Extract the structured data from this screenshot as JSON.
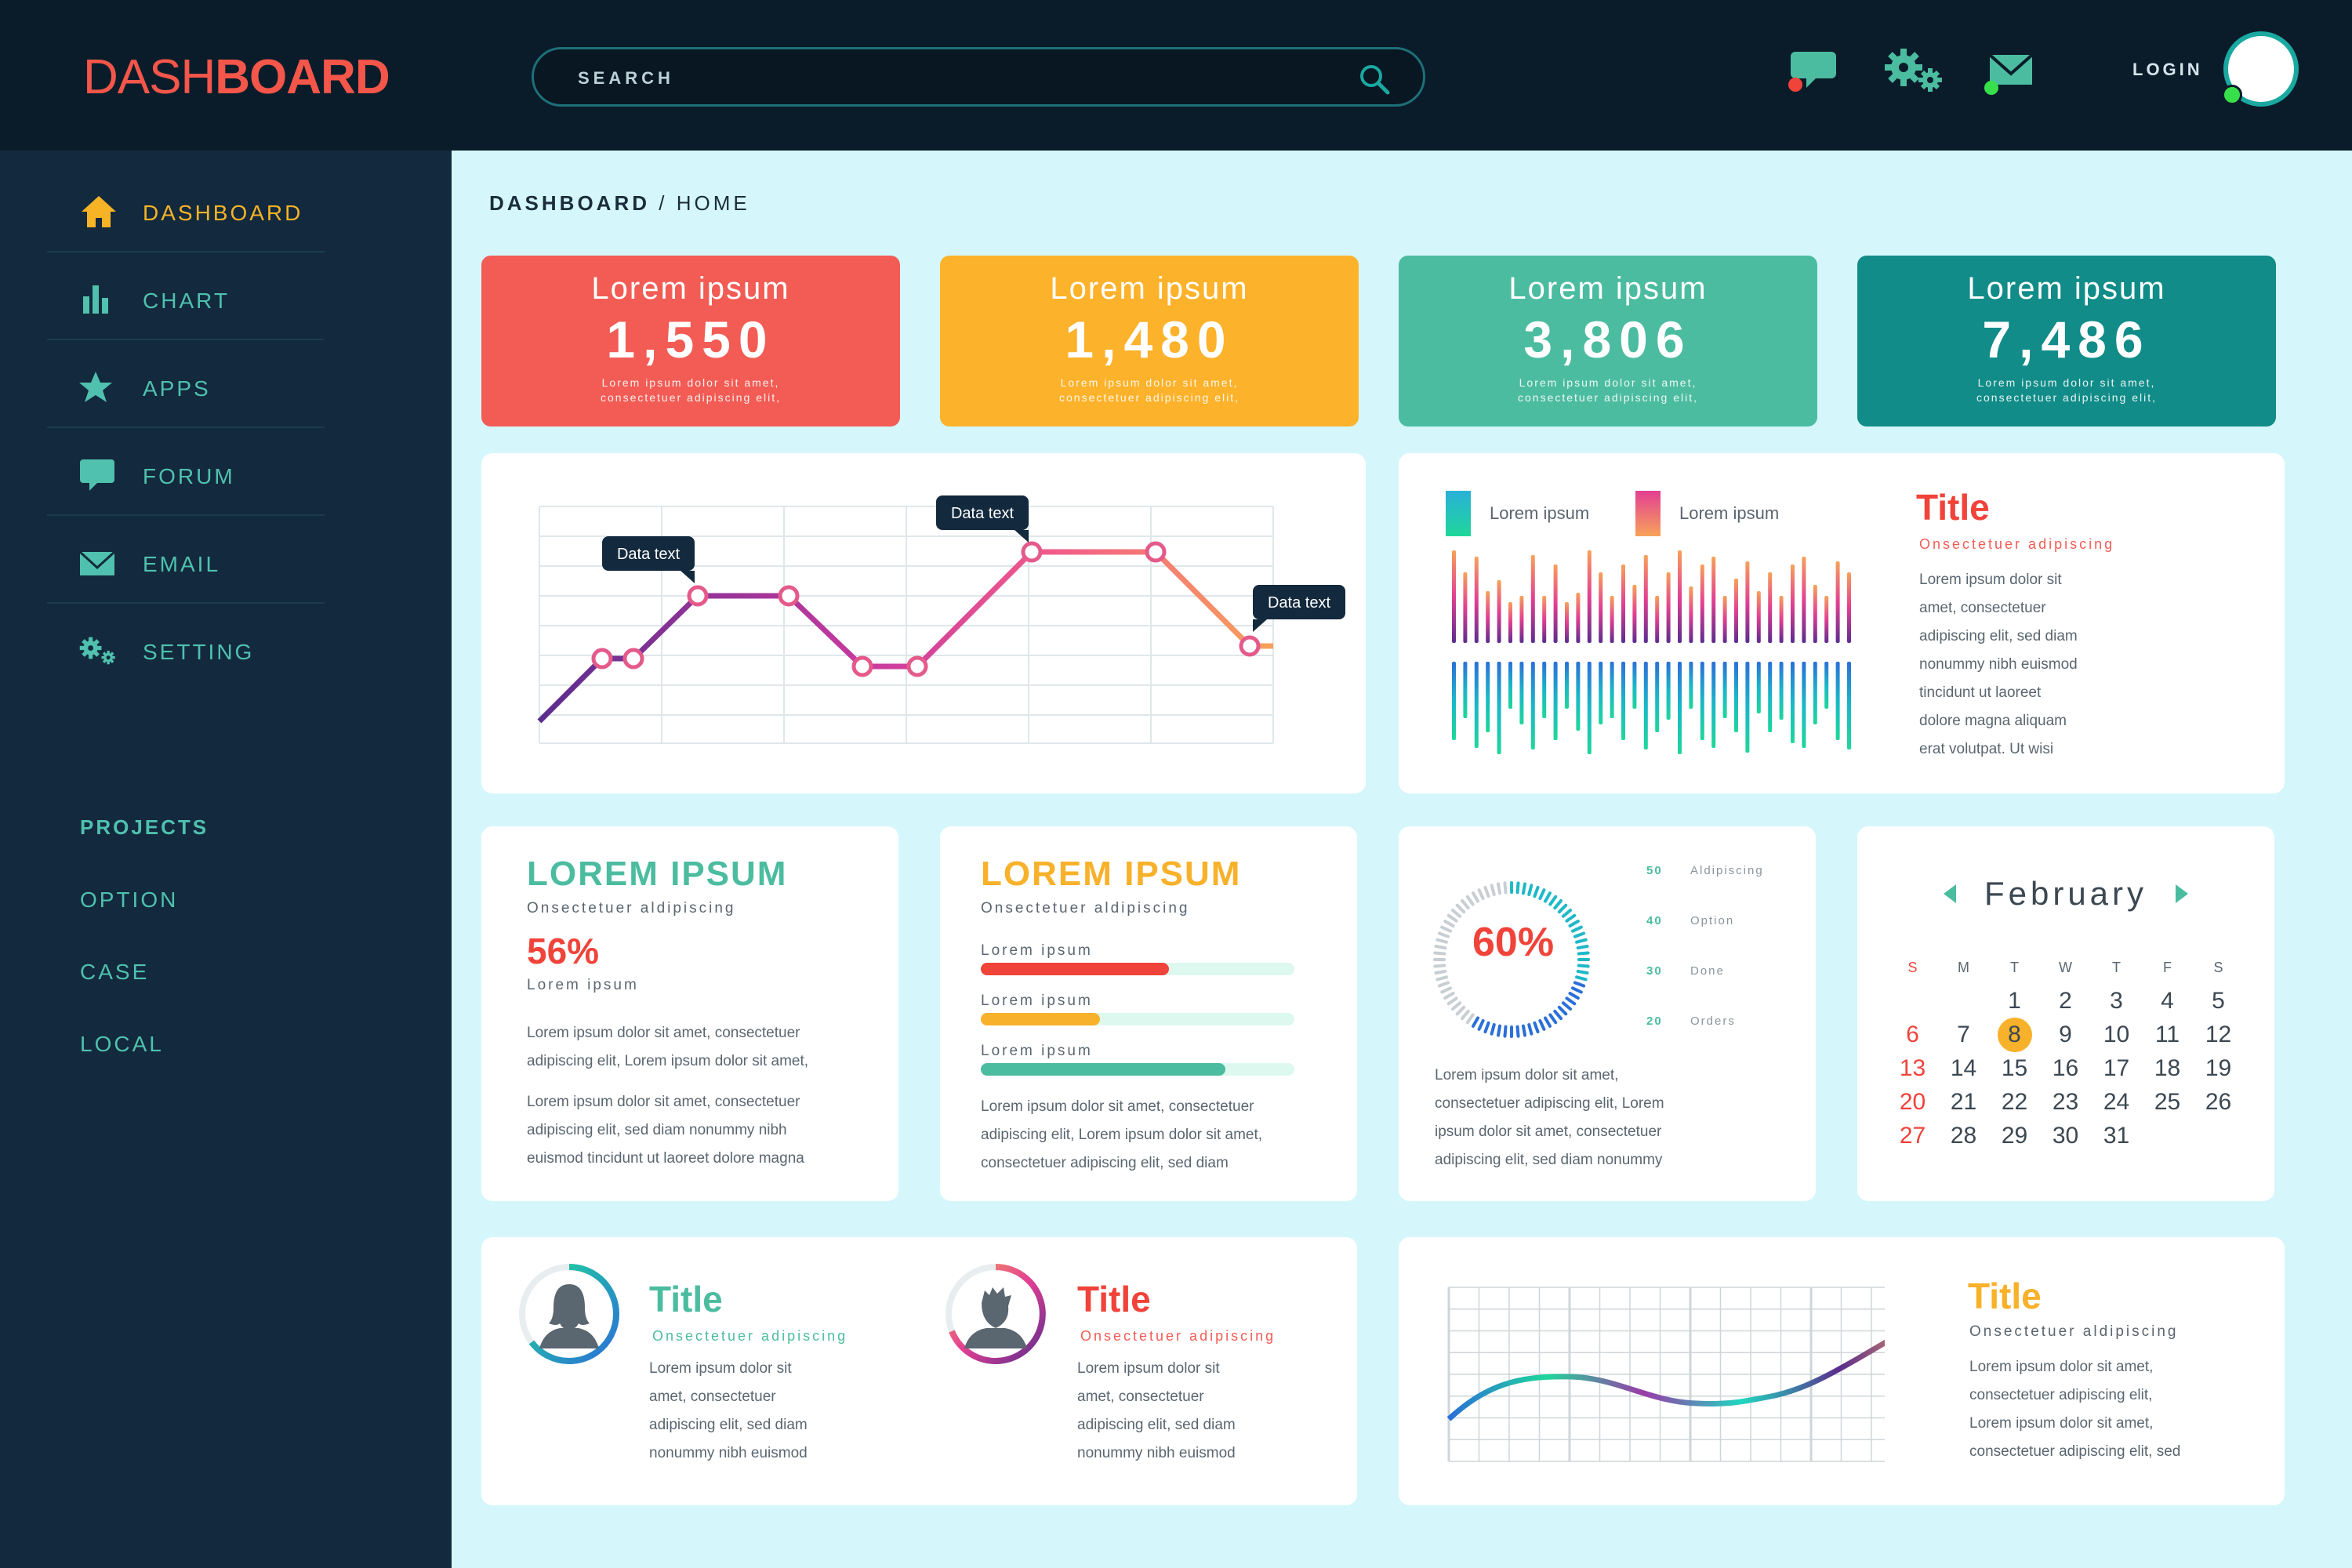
{
  "logo": {
    "thin": "DASH",
    "bold": "BOARD"
  },
  "search": {
    "placeholder": "SEARCH"
  },
  "header": {
    "login": "LOGIN"
  },
  "sidebar": {
    "items": [
      {
        "label": "DASHBOARD",
        "icon": "home-icon",
        "active": true
      },
      {
        "label": "CHART",
        "icon": "bar-chart-icon"
      },
      {
        "label": "APPS",
        "icon": "star-icon"
      },
      {
        "label": "FORUM",
        "icon": "chat-icon"
      },
      {
        "label": "EMAIL",
        "icon": "mail-icon"
      },
      {
        "label": "SETTING",
        "icon": "gears-icon"
      }
    ],
    "projects_heading": "PROJECTS",
    "projects": [
      "OPTION",
      "CASE",
      "LOCAL"
    ]
  },
  "breadcrumb": {
    "root": "DASHBOARD",
    "sep": "/",
    "current": "HOME"
  },
  "stats": [
    {
      "title": "Lorem ipsum",
      "value": "1,550",
      "sub1": "Lorem ipsum dolor sit amet,",
      "sub2": "consectetuer adipiscing elit,",
      "color": "#f25c55"
    },
    {
      "title": "Lorem ipsum",
      "value": "1,480",
      "sub1": "Lorem ipsum dolor sit amet,",
      "sub2": "consectetuer adipiscing elit,",
      "color": "#fdb22b"
    },
    {
      "title": "Lorem ipsum",
      "value": "3,806",
      "sub1": "Lorem ipsum dolor sit amet,",
      "sub2": "consectetuer adipiscing elit,",
      "color": "#4cbca0"
    },
    {
      "title": "Lorem ipsum",
      "value": "7,486",
      "sub1": "Lorem ipsum dolor sit amet,",
      "sub2": "consectetuer adipiscing elit,",
      "color": "#118c88"
    }
  ],
  "line_chart_tooltips": [
    "Data text",
    "Data text",
    "Data text"
  ],
  "wave_card": {
    "legend": [
      "Lorem ipsum",
      "Lorem ipsum"
    ],
    "title": "Title",
    "subtitle": "Onsectetuer adipiscing",
    "lines": [
      "Lorem ipsum dolor sit",
      "amet, consectetuer",
      "adipiscing elit, sed diam",
      "nonummy nibh euismod",
      "tincidunt ut laoreet",
      "dolore magna aliquam",
      "erat volutpat. Ut wisi"
    ]
  },
  "card_a": {
    "title": "LOREM IPSUM",
    "sub": "Onsectetuer aldipiscing",
    "pct": "56%",
    "pct_label": "Lorem ipsum",
    "lines": [
      "Lorem ipsum dolor sit amet, consectetuer",
      "adipiscing elit, Lorem ipsum dolor sit amet,",
      "",
      "Lorem ipsum dolor sit amet, consectetuer",
      "adipiscing elit, sed diam nonummy nibh",
      "euismod tincidunt ut laoreet dolore magna"
    ]
  },
  "card_b": {
    "title": "LOREM IPSUM",
    "sub": "Onsectetuer aldipiscing",
    "bars": [
      {
        "label": "Lorem ipsum",
        "value": 0.6,
        "color": "#f0433a"
      },
      {
        "label": "Lorem ipsum",
        "value": 0.38,
        "color": "#f8b12a"
      },
      {
        "label": "Lorem ipsum",
        "value": 0.78,
        "color": "#4cbca0"
      }
    ],
    "lines": [
      "Lorem ipsum dolor sit amet, consectetuer",
      "adipiscing elit, Lorem ipsum dolor sit amet,",
      "consectetuer adipiscing elit, sed diam"
    ]
  },
  "gauge_card": {
    "pct": "60%",
    "legend": [
      {
        "num": "50",
        "label": "Aldipiscing"
      },
      {
        "num": "40",
        "label": "Option"
      },
      {
        "num": "30",
        "label": "Done"
      },
      {
        "num": "20",
        "label": "Orders"
      }
    ],
    "lines": [
      "Lorem ipsum dolor sit amet,",
      "consectetuer adipiscing elit, Lorem",
      "ipsum dolor sit amet, consectetuer",
      "adipiscing elit, sed diam nonummy"
    ]
  },
  "calendar": {
    "month": "February",
    "days": [
      "S",
      "M",
      "T",
      "W",
      "T",
      "F",
      "S"
    ],
    "selected": 8,
    "weeks": [
      [
        "",
        "",
        "1",
        "2",
        "3",
        "4",
        "5"
      ],
      [
        "6",
        "7",
        "8",
        "9",
        "10",
        "11",
        "12"
      ],
      [
        "13",
        "14",
        "15",
        "16",
        "17",
        "18",
        "19"
      ],
      [
        "20",
        "21",
        "22",
        "23",
        "24",
        "25",
        "26"
      ],
      [
        "27",
        "28",
        "29",
        "30",
        "31",
        "",
        ""
      ]
    ]
  },
  "profile1": {
    "title": "Title",
    "sub": "Onsectetuer adipiscing",
    "lines": [
      "Lorem ipsum dolor sit",
      "amet, consectetuer",
      "adipiscing elit, sed diam",
      "nonummy nibh euismod"
    ],
    "icon": "female-user-icon"
  },
  "profile2": {
    "title": "Title",
    "sub": "Onsectetuer adipiscing",
    "lines": [
      "Lorem ipsum dolor sit",
      "amet, consectetuer",
      "adipiscing elit, sed diam",
      "nonummy nibh euismod"
    ],
    "icon": "male-user-icon"
  },
  "curve_card": {
    "title": "Title",
    "sub": "Onsectetuer aldipiscing",
    "lines": [
      "Lorem ipsum dolor sit amet,",
      "consectetuer adipiscing elit,",
      "Lorem ipsum dolor sit amet,",
      "consectetuer adipiscing elit, sed"
    ]
  }
}
